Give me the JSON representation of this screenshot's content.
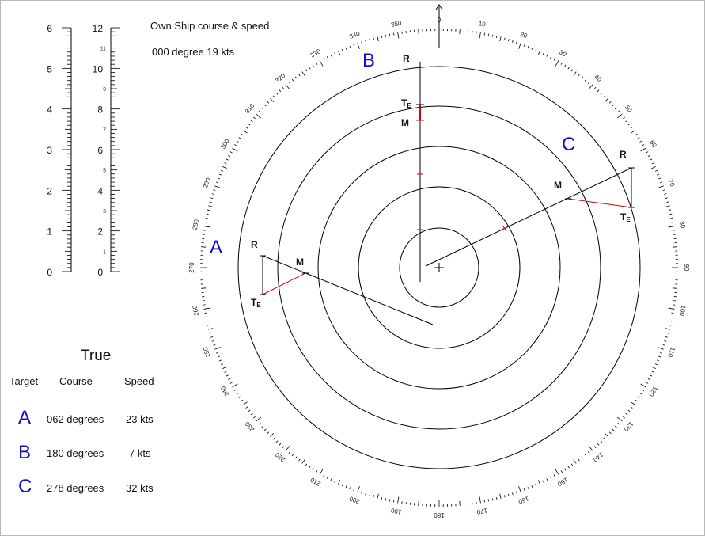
{
  "header": {
    "line1": "Own Ship course & speed",
    "line2": "000 degree  19 kts"
  },
  "scales": {
    "left_labels": [
      "0",
      "1",
      "2",
      "3",
      "4",
      "5",
      "6"
    ],
    "right_major_labels": [
      "0",
      "2",
      "4",
      "6",
      "8",
      "10",
      "12"
    ],
    "right_minor_labels": [
      "1",
      "3",
      "5",
      "7",
      "9",
      "11"
    ]
  },
  "compass": {
    "bearing_labels": [
      "0",
      "10",
      "20",
      "30",
      "40",
      "50",
      "60",
      "70",
      "80",
      "90",
      "100",
      "110",
      "120",
      "130",
      "140",
      "150",
      "160",
      "170",
      "180",
      "190",
      "200",
      "210",
      "220",
      "230",
      "240",
      "250",
      "260",
      "270",
      "280",
      "290",
      "300",
      "310",
      "320",
      "330",
      "340",
      "350"
    ]
  },
  "targets": [
    {
      "id": "A",
      "letter": "A",
      "course": "062 degrees",
      "speed": "23 kts"
    },
    {
      "id": "B",
      "letter": "B",
      "course": "180 degrees",
      "speed": "7 kts"
    },
    {
      "id": "C",
      "letter": "C",
      "course": "278 degrees",
      "speed": "32 kts"
    }
  ],
  "markers": {
    "r": "R",
    "m": "M",
    "t": "T",
    "t_sub": "E"
  },
  "table": {
    "title": "True",
    "col_target": "Target",
    "col_course": "Course",
    "col_speed": "Speed"
  },
  "colors": {
    "target_letters": "#1010c8",
    "vector_red": "#d00000",
    "line": "#000000"
  }
}
